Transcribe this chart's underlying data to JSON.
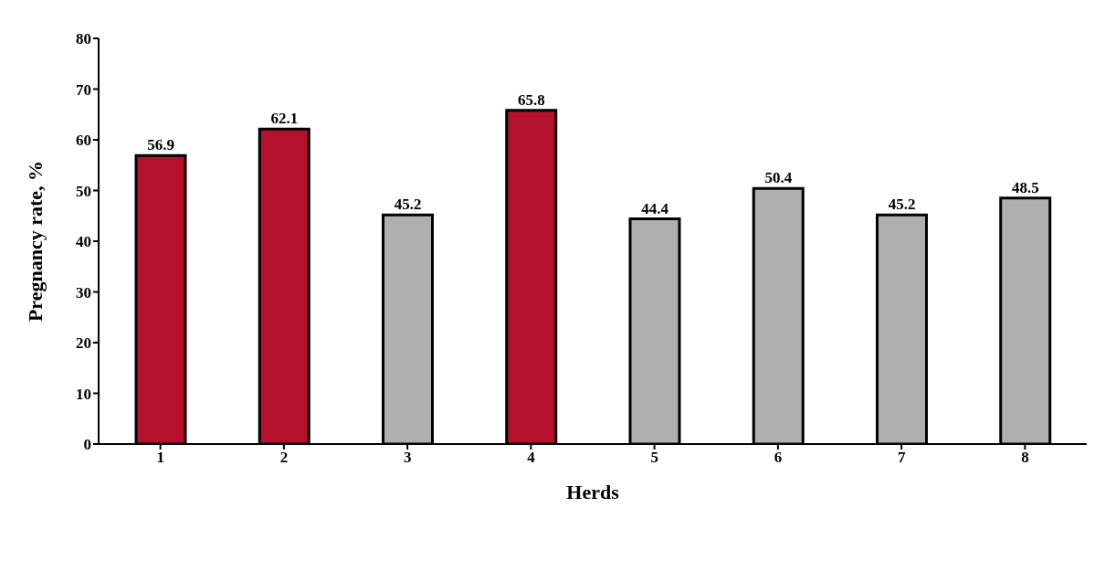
{
  "chart_data": {
    "type": "bar",
    "xlabel": "Herds",
    "ylabel": "Pregnancy rate, %",
    "categories": [
      "1",
      "2",
      "3",
      "4",
      "5",
      "6",
      "7",
      "8"
    ],
    "values": [
      56.9,
      62.1,
      45.2,
      65.8,
      44.4,
      50.4,
      45.2,
      48.5
    ],
    "colors": [
      "#b5102c",
      "#b5102c",
      "#b0aeae",
      "#b5102c",
      "#b0aeae",
      "#b0aeae",
      "#b0aeae",
      "#b0aeae"
    ],
    "ylim": [
      0,
      80
    ],
    "yticks": [
      0,
      10,
      20,
      30,
      40,
      50,
      60,
      70,
      80
    ],
    "data_labels": true,
    "grid": false,
    "legend": false
  }
}
